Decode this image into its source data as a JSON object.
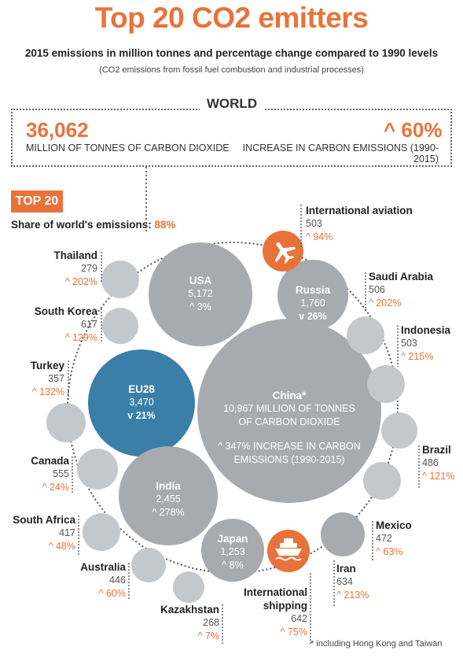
{
  "title": "Top 20 CO2 emitters",
  "subtitle": "2015 emissions in million tonnes and percentage change compared to 1990 levels",
  "note": "(CO2 emissions from fossil fuel combustion and industrial processes)",
  "world": {
    "label": "WORLD",
    "value": "36,062",
    "unit": "MILLION OF TONNES OF CARBON DIOXIDE",
    "change": "^ 60%",
    "change_label": "INCREASE IN CARBON EMISSIONS (1990-2015)"
  },
  "top20": {
    "badge": "TOP 20",
    "share_label": "Share of world's emissions:",
    "share_value": "88%"
  },
  "colors": {
    "accent": "#e8733a",
    "grey_large": "#a7abaf",
    "grey_small": "#c3c8cd",
    "eu_blue": "#3a7fa8"
  },
  "bubbles": {
    "china": {
      "name": "China*",
      "line1": "10,967 MILLION OF TONNES",
      "line2": "OF CARBON DIOXIDE",
      "line3": "^ 347% INCREASE IN CARBON",
      "line4": "EMISSIONS (1990-2015)"
    },
    "usa": {
      "name": "USA",
      "value": "5,172",
      "change": "^ 3%"
    },
    "eu28": {
      "name": "EU28",
      "value": "3,470",
      "change": "v 21%"
    },
    "india": {
      "name": "India",
      "value": "2,455",
      "change": "^ 278%"
    },
    "russia": {
      "name": "Russia",
      "value": "1,760",
      "change": "v 26%"
    },
    "japan": {
      "name": "Japan",
      "value": "1,253",
      "change": "^ 8%"
    }
  },
  "labels": {
    "aviation": {
      "name": "International aviation",
      "value": "503",
      "change": "^ 94%"
    },
    "thailand": {
      "name": "Thailand",
      "value": "279",
      "change": "^ 202%"
    },
    "south_korea": {
      "name": "South Korea",
      "value": "617",
      "change": "^ 129%"
    },
    "turkey": {
      "name": "Turkey",
      "value": "357",
      "change": "^ 132%"
    },
    "canada": {
      "name": "Canada",
      "value": "555",
      "change": "^ 24%"
    },
    "south_africa": {
      "name": "South Africa",
      "value": "417",
      "change": "^ 48%"
    },
    "australia": {
      "name": "Australia",
      "value": "446",
      "change": "^ 60%"
    },
    "kazakhstan": {
      "name": "Kazakhstan",
      "value": "268",
      "change": "^ 7%"
    },
    "saudi_arabia": {
      "name": "Saudi Arabia",
      "value": "506",
      "change": "^ 202%"
    },
    "indonesia": {
      "name": "Indonesia",
      "value": "503",
      "change": "^ 215%"
    },
    "brazil": {
      "name": "Brazil",
      "value": "486",
      "change": "^ 121%"
    },
    "mexico": {
      "name": "Mexico",
      "value": "472",
      "change": "^ 63%"
    },
    "iran": {
      "name": "Iran",
      "value": "634",
      "change": "^ 213%"
    },
    "shipping": {
      "name": "International",
      "name2": "shipping",
      "value": "642",
      "change": "^ 75%"
    }
  },
  "icons": {
    "aviation": "airplane-icon",
    "shipping": "ship-icon"
  },
  "footnote": "* including Hong Kong and Taiwan"
}
